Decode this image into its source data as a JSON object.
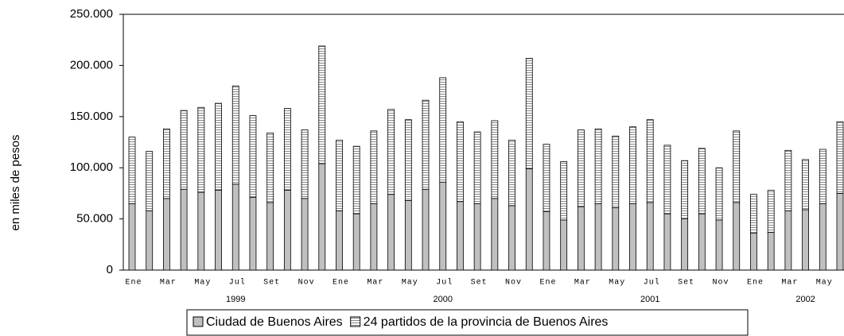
{
  "chart_data": {
    "type": "stacked-bar",
    "y_label": "en miles de pesos",
    "categories": [
      "Ene",
      null,
      "Mar",
      null,
      "May",
      null,
      "Jul",
      null,
      "Set",
      null,
      "Nov",
      null,
      "Ene",
      null,
      "Mar",
      null,
      "May",
      null,
      "Jul",
      null,
      "Set",
      null,
      "Nov",
      null,
      "Ene",
      null,
      "Mar",
      null,
      "May",
      null,
      "Jul",
      null,
      "Set",
      null,
      "Nov",
      null,
      "Ene",
      null,
      "Mar",
      null,
      "May",
      null
    ],
    "years": [
      "1999",
      "2000",
      "2001",
      "2002"
    ],
    "series": [
      {
        "name": "Ciudad de Buenos Aires",
        "color": "#c0c0c0",
        "hatch": false,
        "values": [
          65000,
          58000,
          70000,
          79000,
          76000,
          78000,
          84000,
          71000,
          66000,
          78000,
          70000,
          104000,
          58000,
          55000,
          65000,
          74000,
          68000,
          79000,
          86000,
          67000,
          65000,
          70000,
          63000,
          99000,
          57000,
          49000,
          62000,
          65000,
          61000,
          65000,
          66000,
          55000,
          50000,
          55000,
          49000,
          66000,
          36000,
          37000,
          58000,
          59000,
          65000,
          75000
        ]
      },
      {
        "name": "24 partidos de la provincia de Buenos Aires",
        "color": "#ffffff",
        "hatch": true,
        "values": [
          65000,
          58000,
          68000,
          77000,
          83000,
          85000,
          96000,
          80000,
          68000,
          80000,
          67000,
          115000,
          69000,
          66000,
          71000,
          83000,
          79000,
          87000,
          102000,
          78000,
          70000,
          76000,
          64000,
          108000,
          66000,
          57000,
          75000,
          73000,
          70000,
          75000,
          81000,
          67000,
          57000,
          64000,
          51000,
          70000,
          38000,
          41000,
          59000,
          49000,
          53000,
          70000
        ]
      }
    ],
    "ylim": [
      0,
      250000
    ],
    "yticks": [
      0,
      {
        "value": 50000,
        "label": "50.000"
      },
      {
        "value": 100000,
        "label": "100.000"
      },
      {
        "value": 150000,
        "label": "150.000"
      },
      {
        "value": 200000,
        "label": "200.000"
      },
      {
        "value": 250000,
        "label": "250.000"
      }
    ],
    "grid": false
  }
}
